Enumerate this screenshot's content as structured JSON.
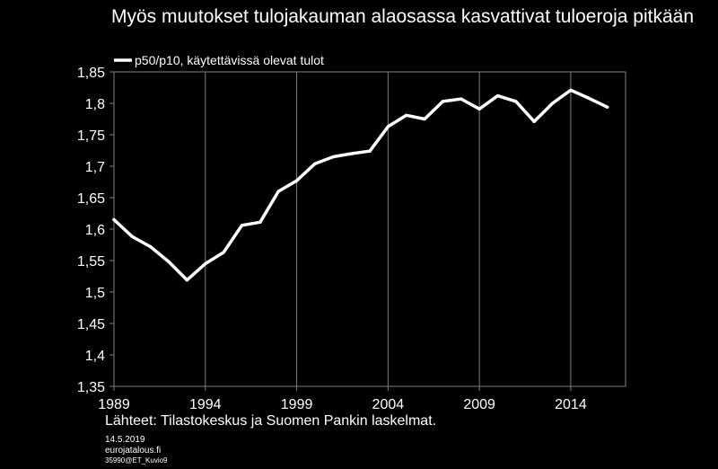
{
  "title": "Myös muutokset tulojakauman alaosassa kasvattivat tuloeroja pitkään",
  "source": "Lähteet: Tilastokeskus ja Suomen Pankin laskelmat.",
  "date": "14.5.2019",
  "site": "eurojatalous.fi",
  "code": "35990@ET_Kuvio9",
  "chart_data": {
    "type": "line",
    "title": "Myös muutokset tulojakauman alaosassa kasvattivat tuloeroja pitkään",
    "xlabel": "",
    "ylabel": "",
    "x": [
      1989,
      1990,
      1991,
      1992,
      1993,
      1994,
      1995,
      1996,
      1997,
      1998,
      1999,
      2000,
      2001,
      2002,
      2003,
      2004,
      2005,
      2006,
      2007,
      2008,
      2009,
      2010,
      2011,
      2012,
      2013,
      2014,
      2015,
      2016
    ],
    "xticks": [
      1989,
      1994,
      1999,
      2004,
      2009,
      2014
    ],
    "xtick_labels": [
      "1989",
      "1994",
      "1999",
      "2004",
      "2009",
      "2014"
    ],
    "ylim": [
      1.35,
      1.85
    ],
    "yticks": [
      1.35,
      1.4,
      1.45,
      1.5,
      1.55,
      1.6,
      1.65,
      1.7,
      1.75,
      1.8,
      1.85
    ],
    "ytick_labels": [
      "1,35",
      "1,4",
      "1,45",
      "1,5",
      "1,55",
      "1,6",
      "1,65",
      "1,7",
      "1,75",
      "1,8",
      "1,85"
    ],
    "grid": "vertical",
    "legend_position": "top-left",
    "series": [
      {
        "name": "p50/p10, käytettävissä olevat tulot",
        "color": "#ffffff",
        "values": [
          1.615,
          1.588,
          1.572,
          1.548,
          1.519,
          1.545,
          1.563,
          1.606,
          1.611,
          1.66,
          1.677,
          1.704,
          1.715,
          1.72,
          1.724,
          1.763,
          1.781,
          1.775,
          1.803,
          1.807,
          1.791,
          1.812,
          1.803,
          1.771,
          1.8,
          1.821,
          1.808,
          1.794
        ]
      }
    ]
  }
}
